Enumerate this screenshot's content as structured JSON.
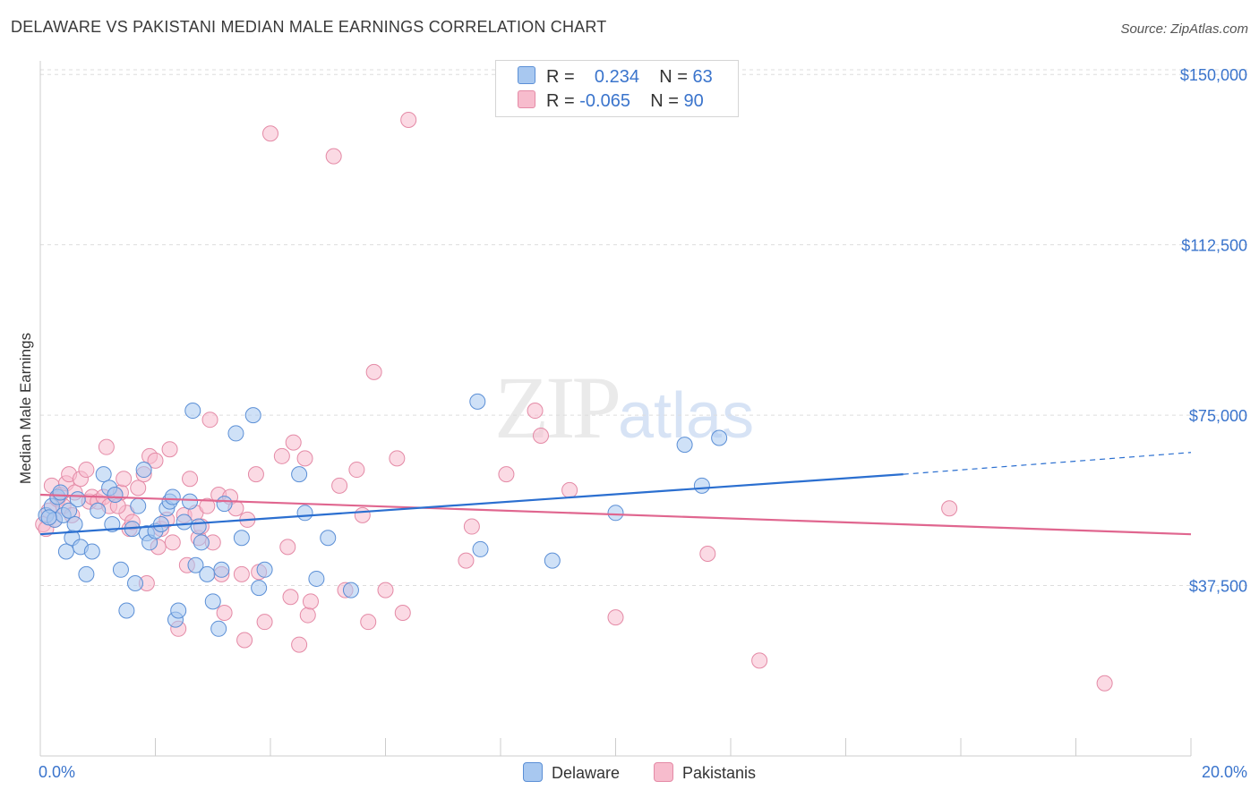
{
  "header": {
    "title": "DELAWARE VS PAKISTANI MEDIAN MALE EARNINGS CORRELATION CHART",
    "source": "Source: ZipAtlas.com"
  },
  "watermark": {
    "zip": "ZIP",
    "atlas": "atlas"
  },
  "legend": {
    "rows": [
      {
        "r_label": "R =",
        "r_value": "0.234",
        "n_label": "N =",
        "n_value": "63"
      },
      {
        "r_label": "R =",
        "r_value": "-0.065",
        "n_label": "N =",
        "n_value": "90"
      }
    ]
  },
  "bottom_legend": {
    "delaware": "Delaware",
    "pakistanis": "Pakistanis"
  },
  "colors": {
    "delaware_fill": "#a8c8f0",
    "delaware_stroke": "#5b8fd6",
    "delaware_line": "#2b6fd0",
    "pakistani_fill": "#f7bccd",
    "pakistani_stroke": "#e48aa6",
    "pakistani_line": "#e0668f",
    "tick_label": "#3a74cc",
    "grid": "#dddddd"
  },
  "chart_data": {
    "type": "scatter",
    "title": "DELAWARE VS PAKISTANI MEDIAN MALE EARNINGS CORRELATION CHART",
    "xlabel": "",
    "ylabel": "Median Male Earnings",
    "xlim": [
      0,
      20
    ],
    "ylim": [
      0,
      153000
    ],
    "x_tick_labels": [
      "0.0%",
      "20.0%"
    ],
    "y_ticks": [
      37500,
      75000,
      112500,
      150000
    ],
    "y_tick_labels": [
      "$37,500",
      "$75,000",
      "$112,500",
      "$150,000"
    ],
    "series": [
      {
        "name": "Delaware",
        "r": 0.234,
        "n": 63,
        "trend": {
          "x0": 0,
          "y0": 48800,
          "x1": 15.0,
          "y1": 62000,
          "dash_to_x": 20,
          "dash_to_y": 66800
        },
        "points": [
          [
            0.1,
            53000
          ],
          [
            0.2,
            55000
          ],
          [
            0.25,
            52000
          ],
          [
            0.3,
            57000
          ],
          [
            0.35,
            58000
          ],
          [
            0.4,
            53000
          ],
          [
            0.45,
            45000
          ],
          [
            0.5,
            54000
          ],
          [
            0.55,
            48000
          ],
          [
            0.6,
            51000
          ],
          [
            0.7,
            46000
          ],
          [
            0.8,
            40000
          ],
          [
            0.9,
            45000
          ],
          [
            1.0,
            54000
          ],
          [
            1.1,
            62000
          ],
          [
            1.2,
            59000
          ],
          [
            1.3,
            57500
          ],
          [
            1.4,
            41000
          ],
          [
            1.5,
            32000
          ],
          [
            1.6,
            50000
          ],
          [
            1.65,
            38000
          ],
          [
            1.7,
            55000
          ],
          [
            1.8,
            63000
          ],
          [
            1.85,
            49000
          ],
          [
            1.9,
            47000
          ],
          [
            2.0,
            49500
          ],
          [
            2.1,
            51000
          ],
          [
            2.2,
            54500
          ],
          [
            2.25,
            56000
          ],
          [
            2.3,
            57000
          ],
          [
            2.35,
            30000
          ],
          [
            2.4,
            32000
          ],
          [
            2.5,
            51500
          ],
          [
            2.6,
            56000
          ],
          [
            2.65,
            76000
          ],
          [
            2.7,
            42000
          ],
          [
            2.8,
            47000
          ],
          [
            2.9,
            40000
          ],
          [
            3.0,
            34000
          ],
          [
            3.1,
            28000
          ],
          [
            3.15,
            41000
          ],
          [
            3.2,
            55500
          ],
          [
            3.4,
            71000
          ],
          [
            3.5,
            48000
          ],
          [
            3.7,
            75000
          ],
          [
            3.8,
            37000
          ],
          [
            3.9,
            41000
          ],
          [
            4.5,
            62000
          ],
          [
            4.6,
            53500
          ],
          [
            5.0,
            48000
          ],
          [
            5.4,
            36500
          ],
          [
            7.6,
            78000
          ],
          [
            7.65,
            45500
          ],
          [
            8.9,
            43000
          ],
          [
            10.0,
            53500
          ],
          [
            11.2,
            68500
          ],
          [
            11.5,
            59500
          ],
          [
            11.8,
            70000
          ],
          [
            0.15,
            52500
          ],
          [
            0.65,
            56500
          ],
          [
            1.25,
            51000
          ],
          [
            2.75,
            50500
          ],
          [
            4.8,
            39000
          ]
        ]
      },
      {
        "name": "Pakistanis",
        "r": -0.065,
        "n": 90,
        "trend": {
          "x0": 0,
          "y0": 57500,
          "x1": 20,
          "y1": 48800
        },
        "points": [
          [
            0.05,
            51000
          ],
          [
            0.1,
            50000
          ],
          [
            0.15,
            54000
          ],
          [
            0.2,
            59500
          ],
          [
            0.3,
            56500
          ],
          [
            0.35,
            57500
          ],
          [
            0.4,
            55000
          ],
          [
            0.45,
            60000
          ],
          [
            0.5,
            62000
          ],
          [
            0.55,
            53000
          ],
          [
            0.6,
            58000
          ],
          [
            0.7,
            61000
          ],
          [
            0.8,
            63000
          ],
          [
            0.85,
            56000
          ],
          [
            0.9,
            57000
          ],
          [
            1.0,
            56000
          ],
          [
            1.1,
            57000
          ],
          [
            1.15,
            68000
          ],
          [
            1.2,
            55000
          ],
          [
            1.3,
            57500
          ],
          [
            1.4,
            58000
          ],
          [
            1.45,
            61000
          ],
          [
            1.5,
            53500
          ],
          [
            1.55,
            50000
          ],
          [
            1.6,
            51500
          ],
          [
            1.7,
            59000
          ],
          [
            1.8,
            62000
          ],
          [
            1.85,
            38000
          ],
          [
            1.9,
            66000
          ],
          [
            2.0,
            65000
          ],
          [
            2.05,
            46000
          ],
          [
            2.1,
            50000
          ],
          [
            2.2,
            52000
          ],
          [
            2.25,
            67500
          ],
          [
            2.3,
            47000
          ],
          [
            2.4,
            28000
          ],
          [
            2.5,
            53000
          ],
          [
            2.55,
            42000
          ],
          [
            2.6,
            61000
          ],
          [
            2.7,
            53500
          ],
          [
            2.75,
            48000
          ],
          [
            2.8,
            50500
          ],
          [
            2.9,
            55000
          ],
          [
            2.95,
            74000
          ],
          [
            3.0,
            47000
          ],
          [
            3.1,
            57500
          ],
          [
            3.15,
            40000
          ],
          [
            3.2,
            31500
          ],
          [
            3.3,
            57000
          ],
          [
            3.4,
            54500
          ],
          [
            3.5,
            40000
          ],
          [
            3.55,
            25500
          ],
          [
            3.6,
            52000
          ],
          [
            3.75,
            62000
          ],
          [
            3.8,
            40500
          ],
          [
            3.9,
            29500
          ],
          [
            4.0,
            137000
          ],
          [
            4.2,
            66000
          ],
          [
            4.3,
            46000
          ],
          [
            4.35,
            35000
          ],
          [
            4.4,
            69000
          ],
          [
            4.5,
            24500
          ],
          [
            4.6,
            65500
          ],
          [
            4.65,
            31000
          ],
          [
            4.7,
            34000
          ],
          [
            5.1,
            132000
          ],
          [
            5.2,
            59500
          ],
          [
            5.3,
            36500
          ],
          [
            5.5,
            63000
          ],
          [
            5.6,
            53000
          ],
          [
            5.7,
            29500
          ],
          [
            5.8,
            84500
          ],
          [
            6.0,
            36500
          ],
          [
            6.2,
            65500
          ],
          [
            6.3,
            31500
          ],
          [
            6.4,
            140000
          ],
          [
            7.4,
            43000
          ],
          [
            7.5,
            50500
          ],
          [
            8.1,
            62000
          ],
          [
            8.6,
            76000
          ],
          [
            8.7,
            70500
          ],
          [
            9.2,
            58500
          ],
          [
            9.3,
            143000
          ],
          [
            10.0,
            30500
          ],
          [
            11.6,
            44500
          ],
          [
            12.5,
            21000
          ],
          [
            15.8,
            54500
          ],
          [
            18.5,
            16000
          ],
          [
            0.25,
            52000
          ],
          [
            1.35,
            55000
          ]
        ]
      }
    ]
  }
}
